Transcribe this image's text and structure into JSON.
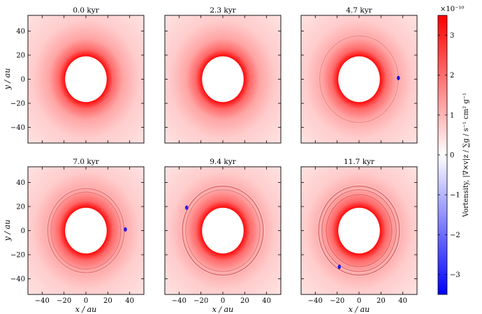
{
  "chart_data": [
    {
      "type": "heatmap",
      "title": "0.0 kyr",
      "xlabel": "",
      "ylabel": "y / au",
      "xlim": [
        -53,
        53
      ],
      "ylim": [
        -53,
        53
      ],
      "xticks": [
        -40,
        -20,
        0,
        20,
        40
      ],
      "yticks": [
        -40,
        -20,
        0,
        20,
        40
      ],
      "inner_hole_radius": 19,
      "features": []
    },
    {
      "type": "heatmap",
      "title": "2.3 kyr",
      "xlabel": "",
      "ylabel": "",
      "xlim": [
        -53,
        53
      ],
      "ylim": [
        -53,
        53
      ],
      "xticks": [
        -40,
        -20,
        0,
        20,
        40
      ],
      "yticks": [
        -40,
        -20,
        0,
        20,
        40
      ],
      "inner_hole_radius": 19,
      "features": []
    },
    {
      "type": "heatmap",
      "title": "4.7 kyr",
      "xlabel": "",
      "ylabel": "",
      "xlim": [
        -53,
        53
      ],
      "ylim": [
        -53,
        53
      ],
      "xticks": [
        -40,
        -20,
        0,
        20,
        40
      ],
      "yticks": [
        -40,
        -20,
        0,
        20,
        40
      ],
      "inner_hole_radius": 19,
      "features": [
        {
          "kind": "vortex",
          "x": 36,
          "y": 1,
          "vorticity": -3.4
        },
        {
          "kind": "ring",
          "radius": 36,
          "strength": 0.2
        }
      ]
    },
    {
      "type": "heatmap",
      "title": "7.0 kyr",
      "xlabel": "x / au",
      "ylabel": "y / au",
      "xlim": [
        -53,
        53
      ],
      "ylim": [
        -53,
        53
      ],
      "xticks": [
        -40,
        -20,
        0,
        20,
        40
      ],
      "yticks": [
        -40,
        -20,
        0,
        20,
        40
      ],
      "inner_hole_radius": 19,
      "features": [
        {
          "kind": "vortex",
          "x": 36,
          "y": 1,
          "vorticity": -3.4
        },
        {
          "kind": "ring",
          "radius": 35,
          "strength": 0.35
        },
        {
          "kind": "ring",
          "radius": 32,
          "strength": 0.25
        }
      ]
    },
    {
      "type": "heatmap",
      "title": "9.4 kyr",
      "xlabel": "x / au",
      "ylabel": "",
      "xlim": [
        -53,
        53
      ],
      "ylim": [
        -53,
        53
      ],
      "xticks": [
        -40,
        -20,
        0,
        20,
        40
      ],
      "yticks": [
        -40,
        -20,
        0,
        20,
        40
      ],
      "inner_hole_radius": 19,
      "features": [
        {
          "kind": "vortex",
          "x": -33,
          "y": 19,
          "vorticity": -3.4
        },
        {
          "kind": "ring",
          "radius": 37,
          "strength": 0.5
        },
        {
          "kind": "ring",
          "radius": 34,
          "strength": 0.3
        }
      ]
    },
    {
      "type": "heatmap",
      "title": "11.7 kyr",
      "xlabel": "x / au",
      "ylabel": "",
      "xlim": [
        -53,
        53
      ],
      "ylim": [
        -53,
        53
      ],
      "xticks": [
        -40,
        -20,
        0,
        20,
        40
      ],
      "yticks": [
        -40,
        -20,
        0,
        20,
        40
      ],
      "inner_hole_radius": 19,
      "features": [
        {
          "kind": "vortex",
          "x": -18,
          "y": -30,
          "vorticity": -3.4
        },
        {
          "kind": "ring",
          "radius": 37,
          "strength": 0.5
        },
        {
          "kind": "ring",
          "radius": 34,
          "strength": 0.4
        },
        {
          "kind": "ring",
          "radius": 30,
          "strength": 0.3
        }
      ]
    }
  ],
  "colorbar": {
    "label": "Vortensity, |∇×v|z / ∑g / s⁻¹ cm² g⁻¹",
    "multiplier": "×10⁻¹⁰",
    "range": [
      -3.5,
      3.5
    ],
    "ticks": [
      "3",
      "2",
      "1",
      "0",
      "−1",
      "−2",
      "−3"
    ],
    "tick_values": [
      3,
      2,
      1,
      0,
      -1,
      -2,
      -3
    ],
    "colormap": [
      "#0000ff",
      "#ffffff",
      "#ff0000"
    ]
  },
  "tick_labels": {
    "x": [
      "−40",
      "−20",
      "0",
      "20",
      "40"
    ],
    "y": [
      "40",
      "20",
      "0",
      "−20",
      "−40"
    ]
  }
}
